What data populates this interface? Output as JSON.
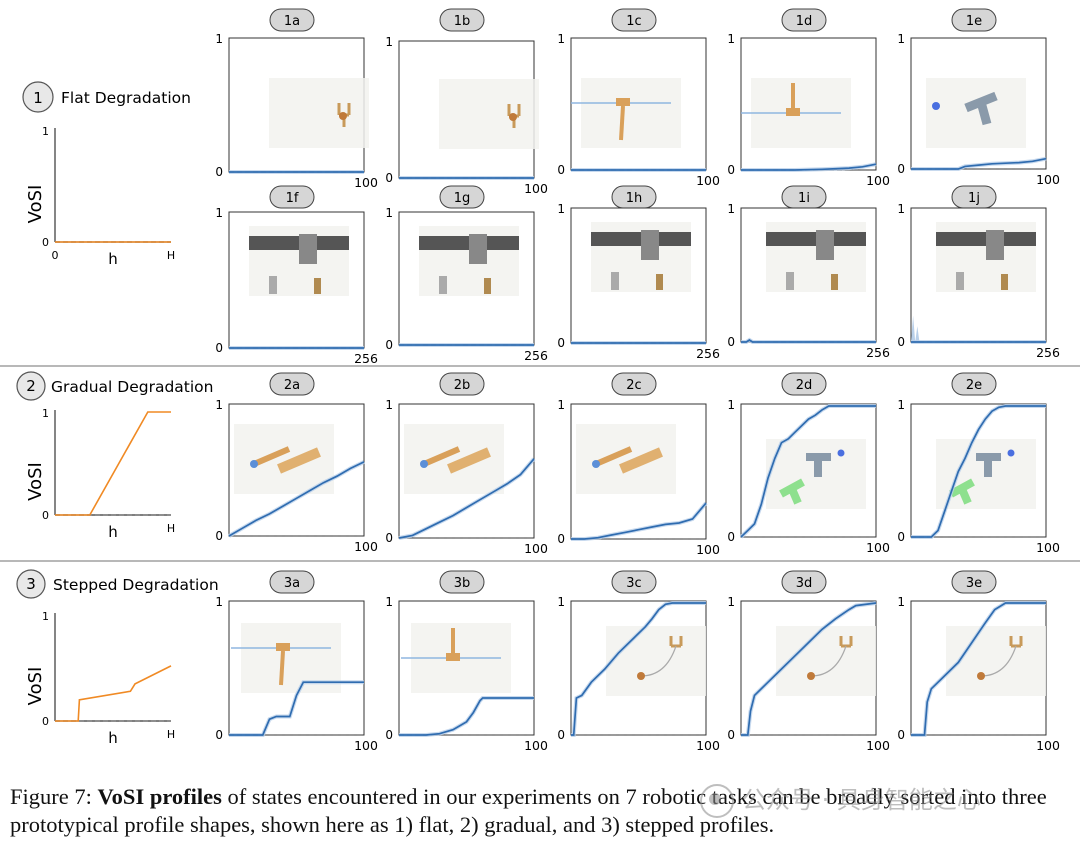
{
  "rows": [
    {
      "number": "1",
      "title": "Flat Degradation",
      "proto": {
        "ylabel": "VoSI",
        "xlabel": "h",
        "x_ticks": [
          "0",
          "H"
        ],
        "y_ticks": [
          "0",
          "1"
        ]
      }
    },
    {
      "number": "2",
      "title": "Gradual Degradation",
      "proto": {
        "ylabel": "VoSI",
        "xlabel": "h",
        "x_ticks": [
          "",
          "H"
        ],
        "y_ticks": [
          "0",
          "1"
        ]
      }
    },
    {
      "number": "3",
      "title": "Stepped Degradation",
      "proto": {
        "ylabel": "VoSI",
        "xlabel": "h",
        "x_ticks": [
          "",
          "H"
        ],
        "y_ticks": [
          "0",
          "1"
        ]
      }
    }
  ],
  "caption": {
    "prefix": "Figure 7:",
    "bold": "VoSI profiles",
    "rest": "of states encountered in our experiments on 7 robotic tasks can be broadly sorted into three prototypical profile shapes, shown here as 1) flat, 2) gradual, and 3) stepped profiles."
  },
  "watermark": "公众号 · 具身智能之心",
  "colors": {
    "series": "#2f6cb0",
    "series_raw": "#b9d0ea",
    "baseline": "#7a7a7a",
    "prototype": "#f08a24",
    "label_bubble": "#d6d6d6"
  },
  "chart_data": [
    {
      "id": "proto-1",
      "type": "line",
      "title": "",
      "xlabel": "h",
      "ylabel": "VoSI",
      "x": [
        0,
        1
      ],
      "series": [
        {
          "values": [
            0.0,
            0.0
          ]
        }
      ],
      "baseline": 0,
      "ylim": [
        0,
        1
      ]
    },
    {
      "id": "proto-2",
      "type": "line",
      "title": "",
      "xlabel": "h",
      "ylabel": "VoSI",
      "x": [
        0,
        0.3,
        0.8,
        1.0
      ],
      "series": [
        {
          "values": [
            0.0,
            0.0,
            1.0,
            1.0
          ]
        }
      ],
      "baseline": 0,
      "ylim": [
        0,
        1
      ]
    },
    {
      "id": "proto-3",
      "type": "line",
      "title": "",
      "xlabel": "h",
      "ylabel": "VoSI",
      "x": [
        0,
        0.2,
        0.21,
        0.65,
        0.69,
        1.0
      ],
      "series": [
        {
          "values": [
            0.0,
            0.0,
            0.2,
            0.28,
            0.35,
            0.52
          ]
        }
      ],
      "baseline": 0,
      "ylim": [
        0,
        1
      ]
    },
    {
      "id": "1a",
      "type": "line",
      "xlim": [
        0,
        100
      ],
      "ylim": [
        0,
        1
      ],
      "x_end_label": "100",
      "x": [
        0,
        100
      ],
      "series": [
        {
          "values": [
            0.0,
            0.0
          ]
        }
      ],
      "baseline": 0
    },
    {
      "id": "1b",
      "type": "line",
      "xlim": [
        0,
        100
      ],
      "ylim": [
        0,
        1
      ],
      "x_end_label": "100",
      "x": [
        0,
        100
      ],
      "series": [
        {
          "values": [
            0.0,
            0.0
          ]
        }
      ],
      "baseline": 0
    },
    {
      "id": "1c",
      "type": "line",
      "xlim": [
        0,
        100
      ],
      "ylim": [
        0,
        1
      ],
      "x_end_label": "100",
      "x": [
        0,
        100
      ],
      "series": [
        {
          "values": [
            0.0,
            0.0
          ]
        }
      ],
      "baseline": 0
    },
    {
      "id": "1d",
      "type": "line",
      "xlim": [
        0,
        100
      ],
      "ylim": [
        0,
        1
      ],
      "x_end_label": "100",
      "x": [
        0,
        40,
        60,
        80,
        90,
        100
      ],
      "series": [
        {
          "values": [
            0.0,
            0.0,
            0.005,
            0.015,
            0.025,
            0.045
          ]
        }
      ],
      "baseline": 0
    },
    {
      "id": "1e",
      "type": "line",
      "xlim": [
        0,
        100
      ],
      "ylim": [
        0,
        1
      ],
      "x_end_label": "100",
      "x": [
        0,
        35,
        40,
        50,
        60,
        70,
        80,
        90,
        100
      ],
      "series": [
        {
          "values": [
            0.0,
            0.0,
            0.02,
            0.03,
            0.04,
            0.045,
            0.05,
            0.06,
            0.08
          ]
        }
      ],
      "baseline": 0
    },
    {
      "id": "1f",
      "type": "line",
      "xlim": [
        0,
        256
      ],
      "ylim": [
        0,
        1
      ],
      "x_end_label": "256",
      "x": [
        0,
        256
      ],
      "series": [
        {
          "values": [
            0.0,
            0.0
          ]
        }
      ],
      "baseline": 0
    },
    {
      "id": "1g",
      "type": "line",
      "xlim": [
        0,
        256
      ],
      "ylim": [
        0,
        1
      ],
      "x_end_label": "256",
      "x": [
        0,
        256
      ],
      "series": [
        {
          "values": [
            0.0,
            0.0
          ]
        }
      ],
      "baseline": 0
    },
    {
      "id": "1h",
      "type": "line",
      "xlim": [
        0,
        256
      ],
      "ylim": [
        0,
        1
      ],
      "x_end_label": "256",
      "x": [
        0,
        256
      ],
      "series": [
        {
          "values": [
            0.0,
            0.0
          ]
        }
      ],
      "baseline": 0
    },
    {
      "id": "1i",
      "type": "line",
      "xlim": [
        0,
        256
      ],
      "ylim": [
        0,
        1
      ],
      "x_end_label": "256",
      "x": [
        0,
        10,
        16,
        22,
        256
      ],
      "series": [
        {
          "values": [
            0.0,
            0.0,
            0.015,
            0.0,
            0.0
          ]
        }
      ],
      "baseline": 0
    },
    {
      "id": "1j",
      "type": "line",
      "xlim": [
        0,
        256
      ],
      "ylim": [
        0,
        1
      ],
      "x_end_label": "256",
      "x": [
        0,
        256
      ],
      "series": [
        {
          "values": [
            0.0,
            0.0
          ]
        }
      ],
      "raw_spikes": [
        [
          4,
          0.2
        ],
        [
          12,
          0.12
        ]
      ],
      "baseline": 0
    },
    {
      "id": "2a",
      "type": "line",
      "xlim": [
        0,
        100
      ],
      "ylim": [
        0,
        1
      ],
      "x_end_label": "100",
      "x": [
        0,
        10,
        20,
        30,
        40,
        50,
        60,
        70,
        80,
        90,
        100
      ],
      "series": [
        {
          "values": [
            0.0,
            0.06,
            0.12,
            0.17,
            0.23,
            0.29,
            0.35,
            0.41,
            0.46,
            0.52,
            0.57
          ]
        }
      ],
      "baseline": 0
    },
    {
      "id": "2b",
      "type": "line",
      "xlim": [
        0,
        100
      ],
      "ylim": [
        0,
        1
      ],
      "x_end_label": "100",
      "x": [
        0,
        10,
        20,
        30,
        40,
        50,
        60,
        70,
        80,
        90,
        100
      ],
      "series": [
        {
          "values": [
            0.0,
            0.02,
            0.07,
            0.12,
            0.17,
            0.23,
            0.29,
            0.35,
            0.41,
            0.48,
            0.6
          ]
        }
      ],
      "baseline": 0
    },
    {
      "id": "2c",
      "type": "line",
      "xlim": [
        0,
        100
      ],
      "ylim": [
        0,
        1
      ],
      "x_end_label": "100",
      "x": [
        0,
        10,
        20,
        30,
        40,
        50,
        60,
        70,
        80,
        90,
        100
      ],
      "series": [
        {
          "values": [
            0.0,
            0.0,
            0.01,
            0.03,
            0.05,
            0.07,
            0.09,
            0.11,
            0.12,
            0.15,
            0.27
          ]
        }
      ],
      "baseline": 0
    },
    {
      "id": "2d",
      "type": "line",
      "xlim": [
        0,
        100
      ],
      "ylim": [
        0,
        1
      ],
      "x_end_label": "100",
      "x": [
        0,
        5,
        10,
        15,
        20,
        25,
        30,
        35,
        40,
        45,
        50,
        55,
        60,
        65,
        70,
        100
      ],
      "series": [
        {
          "values": [
            0.0,
            0.05,
            0.1,
            0.25,
            0.45,
            0.6,
            0.72,
            0.75,
            0.8,
            0.85,
            0.9,
            0.93,
            0.97,
            1.0,
            1.0,
            1.0
          ]
        }
      ],
      "baseline": 0
    },
    {
      "id": "2e",
      "type": "line",
      "xlim": [
        0,
        100
      ],
      "ylim": [
        0,
        1
      ],
      "x_end_label": "100",
      "x": [
        0,
        15,
        20,
        25,
        30,
        35,
        40,
        45,
        50,
        55,
        60,
        65,
        70,
        80,
        100
      ],
      "series": [
        {
          "values": [
            0.0,
            0.0,
            0.05,
            0.2,
            0.35,
            0.5,
            0.6,
            0.72,
            0.82,
            0.9,
            0.96,
            0.99,
            1.0,
            1.0,
            1.0
          ]
        }
      ],
      "baseline": 0
    },
    {
      "id": "3a",
      "type": "line",
      "xlim": [
        0,
        100
      ],
      "ylim": [
        0,
        1
      ],
      "x_end_label": "100",
      "x": [
        0,
        25,
        30,
        35,
        45,
        50,
        55,
        60,
        100
      ],
      "series": [
        {
          "values": [
            0.0,
            0.0,
            0.12,
            0.14,
            0.14,
            0.3,
            0.4,
            0.4,
            0.4
          ]
        }
      ],
      "baseline": 0
    },
    {
      "id": "3b",
      "type": "line",
      "xlim": [
        0,
        100
      ],
      "ylim": [
        0,
        1
      ],
      "x_end_label": "100",
      "x": [
        0,
        20,
        30,
        40,
        50,
        55,
        60,
        62,
        100
      ],
      "series": [
        {
          "values": [
            0.0,
            0.0,
            0.01,
            0.04,
            0.1,
            0.17,
            0.26,
            0.28,
            0.28
          ]
        }
      ],
      "baseline": 0
    },
    {
      "id": "3c",
      "type": "line",
      "xlim": [
        0,
        100
      ],
      "ylim": [
        0,
        1
      ],
      "x_end_label": "100",
      "x": [
        0,
        2,
        4,
        8,
        15,
        25,
        35,
        45,
        55,
        60,
        65,
        70,
        75,
        100
      ],
      "series": [
        {
          "values": [
            0.0,
            0.0,
            0.28,
            0.3,
            0.4,
            0.5,
            0.62,
            0.72,
            0.82,
            0.88,
            0.95,
            0.99,
            1.0,
            1.0
          ]
        }
      ],
      "baseline": 0
    },
    {
      "id": "3d",
      "type": "line",
      "xlim": [
        0,
        100
      ],
      "ylim": [
        0,
        1
      ],
      "x_end_label": "100",
      "x": [
        0,
        5,
        7,
        10,
        20,
        30,
        40,
        50,
        60,
        70,
        80,
        85,
        100
      ],
      "series": [
        {
          "values": [
            0.0,
            0.0,
            0.18,
            0.3,
            0.4,
            0.5,
            0.6,
            0.7,
            0.8,
            0.88,
            0.95,
            0.98,
            1.0
          ]
        }
      ],
      "baseline": 0
    },
    {
      "id": "3e",
      "type": "line",
      "xlim": [
        0,
        100
      ],
      "ylim": [
        0,
        1
      ],
      "x_end_label": "100",
      "x": [
        0,
        10,
        12,
        15,
        25,
        35,
        45,
        55,
        62,
        70,
        80,
        100
      ],
      "series": [
        {
          "values": [
            0.0,
            0.0,
            0.25,
            0.35,
            0.45,
            0.55,
            0.7,
            0.85,
            0.95,
            1.0,
            1.0,
            1.0
          ]
        }
      ],
      "baseline": 0
    }
  ]
}
